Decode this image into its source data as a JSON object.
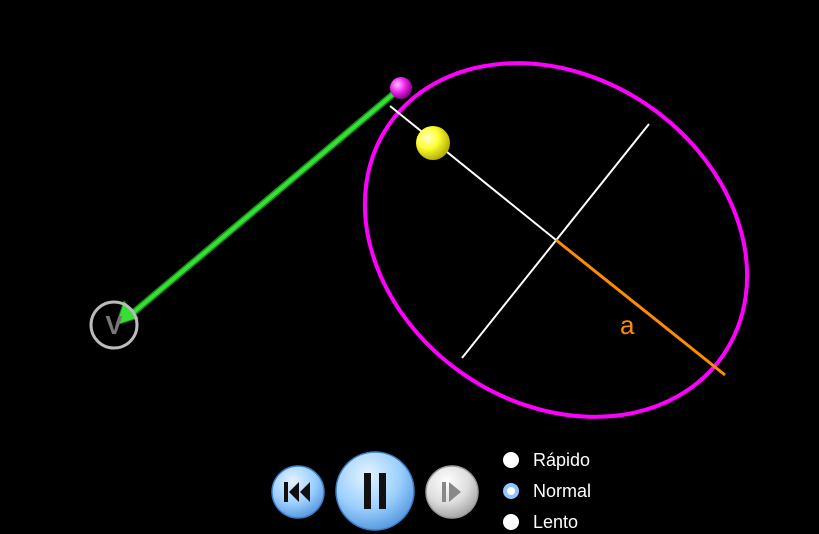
{
  "simulation": {
    "semi_major_label": "a",
    "vector_label": "V",
    "colors": {
      "background": "#000000",
      "orbit": "#ff00ff",
      "axes": "#ffffff",
      "semi_major": "#ff8c00",
      "velocity": "#33e033",
      "star": "#ffff33",
      "planet": "#ff33ff"
    }
  },
  "controls": {
    "rewind_icon": "rewind-icon",
    "pause_icon": "pause-icon",
    "step_icon": "step-forward-icon"
  },
  "speed_options": [
    {
      "label": "Rápido",
      "selected": false
    },
    {
      "label": "Normal",
      "selected": true
    },
    {
      "label": "Lento",
      "selected": false
    }
  ]
}
